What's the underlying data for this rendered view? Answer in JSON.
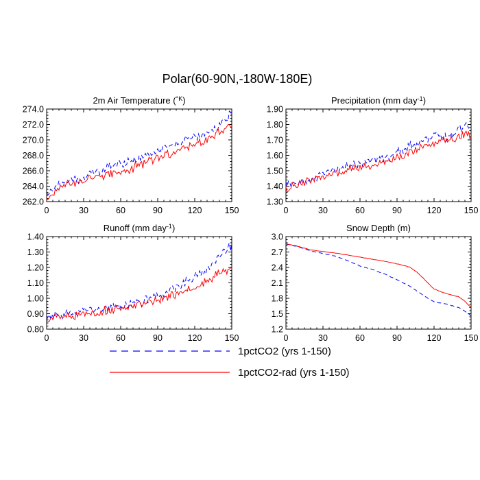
{
  "figure": {
    "title": "Polar(60-90N,-180W-180E)"
  },
  "legend": [
    {
      "label": "1pctCO2 (yrs 1-150)",
      "color": "#0000ff",
      "dash": "dashed"
    },
    {
      "label": "1pctCO2-rad (yrs 1-150)",
      "color": "#ff0000",
      "dash": "solid"
    }
  ],
  "chart_data": [
    {
      "type": "line",
      "title": "2m Air Temperature (°K)",
      "title_main": "2m Air Temperature (",
      "title_unit": "°K",
      "title_tail": ")",
      "xlim": [
        0,
        150
      ],
      "ylim": [
        262,
        274
      ],
      "xticks": [
        "0",
        "30",
        "60",
        "90",
        "120",
        "150"
      ],
      "yticks": [
        "262.0",
        "264.0",
        "266.0",
        "268.0",
        "270.0",
        "272.0",
        "274.0"
      ],
      "series": [
        {
          "name": "1pctCO2 (yrs 1-150)",
          "color": "#0000ff",
          "x": [
            0,
            10,
            20,
            30,
            40,
            50,
            60,
            70,
            80,
            90,
            100,
            110,
            120,
            130,
            140,
            145,
            150
          ],
          "y": [
            262.6,
            264.3,
            264.7,
            265.2,
            265.9,
            266.4,
            266.9,
            267.3,
            267.9,
            268.7,
            269.2,
            269.8,
            270.4,
            270.9,
            271.8,
            272.6,
            273.6
          ]
        },
        {
          "name": "1pctCO2-rad (yrs 1-150)",
          "color": "#ff0000",
          "x": [
            0,
            10,
            20,
            30,
            40,
            50,
            60,
            70,
            80,
            90,
            100,
            110,
            120,
            130,
            140,
            145,
            150
          ],
          "y": [
            262.4,
            264.0,
            264.3,
            264.7,
            265.1,
            265.5,
            265.9,
            266.4,
            267.1,
            267.7,
            268.2,
            268.9,
            269.4,
            270.2,
            270.9,
            271.4,
            271.8
          ]
        }
      ]
    },
    {
      "type": "line",
      "title": "Precipitation (mm day-1)",
      "title_main": "Precipitation (mm day",
      "title_unit": "-1",
      "title_tail": ")",
      "xlim": [
        0,
        150
      ],
      "ylim": [
        1.3,
        1.9
      ],
      "xticks": [
        "0",
        "30",
        "60",
        "90",
        "120",
        "150"
      ],
      "yticks": [
        "1.30",
        "1.40",
        "1.50",
        "1.60",
        "1.70",
        "1.80",
        "1.90"
      ],
      "series": [
        {
          "name": "1pctCO2 (yrs 1-150)",
          "color": "#0000ff",
          "x": [
            0,
            10,
            20,
            30,
            40,
            50,
            60,
            70,
            80,
            90,
            100,
            110,
            120,
            130,
            140,
            150
          ],
          "y": [
            1.4,
            1.42,
            1.45,
            1.48,
            1.51,
            1.53,
            1.55,
            1.57,
            1.58,
            1.62,
            1.66,
            1.68,
            1.73,
            1.71,
            1.77,
            1.8
          ]
        },
        {
          "name": "1pctCO2-rad (yrs 1-150)",
          "color": "#ff0000",
          "x": [
            0,
            10,
            20,
            30,
            40,
            50,
            60,
            70,
            80,
            90,
            100,
            110,
            120,
            130,
            140,
            150
          ],
          "y": [
            1.38,
            1.41,
            1.44,
            1.46,
            1.48,
            1.5,
            1.52,
            1.54,
            1.56,
            1.59,
            1.62,
            1.65,
            1.68,
            1.7,
            1.72,
            1.74
          ]
        }
      ]
    },
    {
      "type": "line",
      "title": "Runoff (mm day-1)",
      "title_main": "Runoff (mm day",
      "title_unit": "-1",
      "title_tail": ")",
      "xlim": [
        0,
        150
      ],
      "ylim": [
        0.8,
        1.4
      ],
      "xticks": [
        "0",
        "30",
        "60",
        "90",
        "120",
        "150"
      ],
      "yticks": [
        "0.80",
        "0.90",
        "1.00",
        "1.10",
        "1.20",
        "1.30",
        "1.40"
      ],
      "series": [
        {
          "name": "1pctCO2 (yrs 1-150)",
          "color": "#0000ff",
          "x": [
            0,
            10,
            20,
            30,
            40,
            50,
            60,
            70,
            80,
            90,
            100,
            110,
            120,
            130,
            140,
            150
          ],
          "y": [
            0.88,
            0.89,
            0.9,
            0.92,
            0.93,
            0.94,
            0.95,
            0.97,
            0.99,
            1.02,
            1.05,
            1.09,
            1.14,
            1.18,
            1.27,
            1.34
          ]
        },
        {
          "name": "1pctCO2-rad (yrs 1-150)",
          "color": "#ff0000",
          "x": [
            0,
            10,
            20,
            30,
            40,
            50,
            60,
            70,
            80,
            90,
            100,
            110,
            120,
            130,
            140,
            150
          ],
          "y": [
            0.87,
            0.88,
            0.89,
            0.9,
            0.91,
            0.92,
            0.93,
            0.95,
            0.97,
            0.99,
            1.01,
            1.04,
            1.07,
            1.11,
            1.16,
            1.2
          ]
        }
      ]
    },
    {
      "type": "line",
      "title": "Snow Depth (m)",
      "title_main": "Snow Depth (m)",
      "title_unit": "",
      "title_tail": "",
      "xlim": [
        0,
        150
      ],
      "ylim": [
        1.2,
        3.0
      ],
      "xticks": [
        "0",
        "30",
        "60",
        "90",
        "120",
        "150"
      ],
      "yticks": [
        "1.2",
        "1.5",
        "1.8",
        "2.1",
        "2.4",
        "2.7",
        "3.0"
      ],
      "series": [
        {
          "name": "1pctCO2 (yrs 1-150)",
          "color": "#0000ff",
          "x": [
            0,
            10,
            20,
            30,
            40,
            50,
            60,
            70,
            80,
            90,
            100,
            110,
            115,
            120,
            130,
            140,
            145,
            150
          ],
          "y": [
            2.86,
            2.8,
            2.72,
            2.67,
            2.62,
            2.53,
            2.43,
            2.36,
            2.27,
            2.16,
            2.04,
            1.88,
            1.8,
            1.73,
            1.69,
            1.62,
            1.55,
            1.46
          ]
        },
        {
          "name": "1pctCO2-rad (yrs 1-150)",
          "color": "#ff0000",
          "x": [
            0,
            10,
            20,
            30,
            40,
            50,
            60,
            70,
            80,
            90,
            100,
            105,
            110,
            115,
            120,
            130,
            140,
            145,
            150
          ],
          "y": [
            2.86,
            2.81,
            2.74,
            2.71,
            2.68,
            2.64,
            2.6,
            2.56,
            2.52,
            2.47,
            2.41,
            2.33,
            2.22,
            2.1,
            1.98,
            1.89,
            1.83,
            1.74,
            1.62
          ]
        }
      ]
    }
  ]
}
